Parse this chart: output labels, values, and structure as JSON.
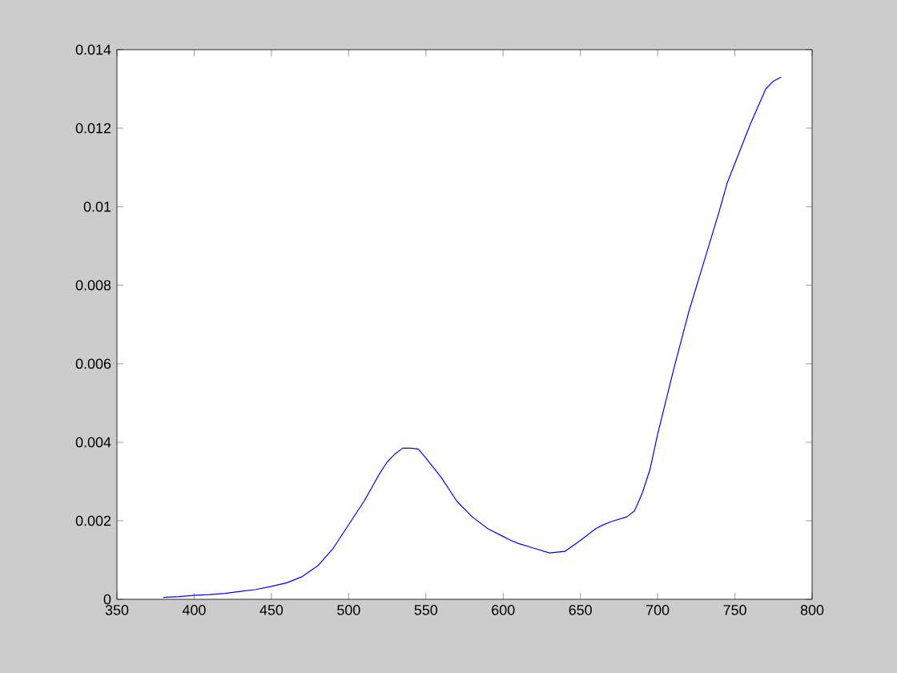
{
  "chart_data": {
    "type": "line",
    "color": "#0000ff",
    "x": [
      380,
      390,
      400,
      410,
      420,
      430,
      440,
      450,
      460,
      470,
      480,
      490,
      500,
      510,
      520,
      525,
      530,
      535,
      540,
      545,
      550,
      560,
      570,
      580,
      590,
      600,
      605,
      610,
      620,
      630,
      640,
      650,
      660,
      665,
      670,
      680,
      685,
      690,
      695,
      700,
      710,
      720,
      730,
      740,
      745,
      750,
      760,
      770,
      775,
      780
    ],
    "values": [
      5e-05,
      7e-05,
      0.0001,
      0.00012,
      0.00015,
      0.0002,
      0.00025,
      0.00033,
      0.00042,
      0.00058,
      0.00085,
      0.0013,
      0.0019,
      0.0025,
      0.0032,
      0.0035,
      0.0037,
      0.00385,
      0.00385,
      0.00383,
      0.0036,
      0.0031,
      0.0025,
      0.0021,
      0.0018,
      0.0016,
      0.0015,
      0.00142,
      0.0013,
      0.00118,
      0.00122,
      0.0015,
      0.0018,
      0.0019,
      0.00198,
      0.0021,
      0.00225,
      0.0027,
      0.0033,
      0.0042,
      0.0058,
      0.0073,
      0.0086,
      0.0099,
      0.0106,
      0.0111,
      0.0121,
      0.013,
      0.0132,
      0.0133
    ],
    "xlim": [
      350,
      800
    ],
    "ylim": [
      0,
      0.014
    ],
    "xticks": [
      350,
      400,
      450,
      500,
      550,
      600,
      650,
      700,
      750,
      800
    ],
    "yticks": [
      0,
      0.002,
      0.004,
      0.006,
      0.008,
      0.01,
      0.012,
      0.014
    ],
    "line_style": "solid",
    "grid": false
  }
}
